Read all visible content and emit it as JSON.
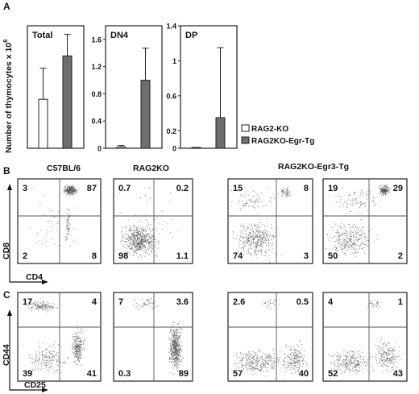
{
  "figure": {
    "panel_a_label": "A",
    "panel_b_label": "B",
    "panel_c_label": "C",
    "y_axis_label": "Number of thymocytes x 10",
    "y_axis_superscript": "6",
    "legend": [
      {
        "label": "RAG2-KO",
        "color": "#ffffff"
      },
      {
        "label": "RAG2KO-Egr-Tg",
        "color": "#6e6e6e"
      }
    ],
    "flow_titles": [
      "C57BL/6",
      "RAG2KO",
      "RAG2KO-Egr3-Tg"
    ],
    "row_b_axes": {
      "y": "CD8",
      "x": "CD4"
    },
    "row_c_axes": {
      "y": "CD44",
      "x": "CD25"
    },
    "row_b_quadrants": [
      {
        "tl": "3",
        "tr": "87",
        "bl": "2",
        "br": "8"
      },
      {
        "tl": "0.7",
        "tr": "0.2",
        "bl": "98",
        "br": "1.1"
      },
      {
        "tl": "15",
        "tr": "8",
        "bl": "74",
        "br": "3"
      },
      {
        "tl": "19",
        "tr": "29",
        "bl": "50",
        "br": "2"
      }
    ],
    "row_c_quadrants": [
      {
        "tl": "17",
        "tr": "4",
        "bl": "39",
        "br": "41"
      },
      {
        "tl": "7",
        "tr": "3.6",
        "bl": "0.3",
        "br": "89"
      },
      {
        "tl": "2.6",
        "tr": "0.5",
        "bl": "57",
        "br": "40"
      },
      {
        "tl": "4",
        "tr": "1",
        "bl": "52",
        "br": "43"
      }
    ]
  },
  "chart_data": [
    {
      "type": "bar",
      "title": "Total",
      "categories": [
        "RAG2-KO",
        "RAG2KO-Egr-Tg"
      ],
      "values": [
        2.6,
        4.9
      ],
      "errors": [
        1.65,
        1.15
      ],
      "ylim": [
        0,
        6.5
      ],
      "yticks": []
    },
    {
      "type": "bar",
      "title": "DN4",
      "categories": [
        "RAG2-KO",
        "RAG2KO-Egr-Tg"
      ],
      "values": [
        0.02,
        1.0
      ],
      "errors": [
        0.02,
        0.47
      ],
      "ylim": [
        0,
        1.8
      ],
      "yticks": [
        "0",
        "0.4",
        "0.8",
        "1.2",
        "1.6"
      ]
    },
    {
      "type": "bar",
      "title": "DP",
      "categories": [
        "RAG2-KO",
        "RAG2KO-Egr-Tg"
      ],
      "values": [
        0.005,
        0.35
      ],
      "errors": [
        0.003,
        0.8
      ],
      "ylim": [
        0,
        1.4
      ],
      "yticks": [
        "0",
        "0.2",
        "0.6",
        "1",
        "1.4"
      ]
    }
  ]
}
